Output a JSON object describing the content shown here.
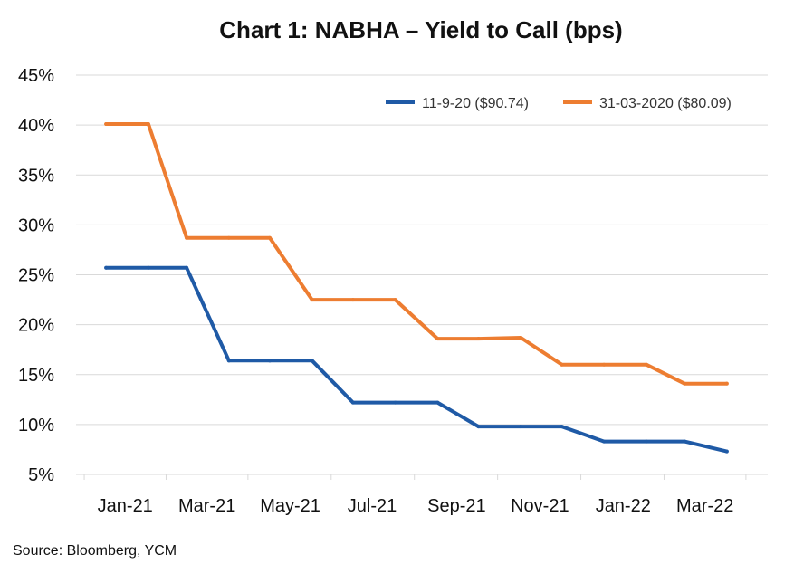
{
  "chart_data": {
    "type": "line",
    "title": "Chart 1: NABHA – Yield to Call (bps)",
    "source": "Source: Bloomberg, YCM",
    "y_ticks": [
      "5%",
      "10%",
      "15%",
      "20%",
      "25%",
      "30%",
      "35%",
      "40%",
      "45%"
    ],
    "ylim": [
      5,
      45
    ],
    "x_tick_labels": [
      "Jan-21",
      "Mar-21",
      "May-21",
      "Jul-21",
      "Sep-21",
      "Nov-21",
      "Jan-22",
      "Mar-22"
    ],
    "x": [
      "2021-01-01",
      "2021-02-01",
      "2021-03-01",
      "2021-04-01",
      "2021-05-01",
      "2021-06-01",
      "2021-07-01",
      "2021-08-01",
      "2021-09-01",
      "2021-10-01",
      "2021-11-01",
      "2021-12-01",
      "2022-01-01",
      "2022-02-01",
      "2022-03-01",
      "2022-04-01"
    ],
    "xlim": [
      "2020-12-10",
      "2022-05-01"
    ],
    "grid": true,
    "legend_position": "top-right",
    "series": [
      {
        "name": "11-9-20 ($90.74)",
        "color": "#1f5aa6",
        "values": [
          25.7,
          25.7,
          25.7,
          16.4,
          16.4,
          16.4,
          12.2,
          12.2,
          12.2,
          9.8,
          9.8,
          9.8,
          8.3,
          8.3,
          8.3,
          7.3
        ]
      },
      {
        "name": "31-03-2020 ($80.09)",
        "color": "#ed7d31",
        "values": [
          40.1,
          40.1,
          28.7,
          28.7,
          28.7,
          22.5,
          22.5,
          22.5,
          18.6,
          18.6,
          18.7,
          16.0,
          16.0,
          16.0,
          14.1,
          14.1
        ]
      }
    ]
  }
}
